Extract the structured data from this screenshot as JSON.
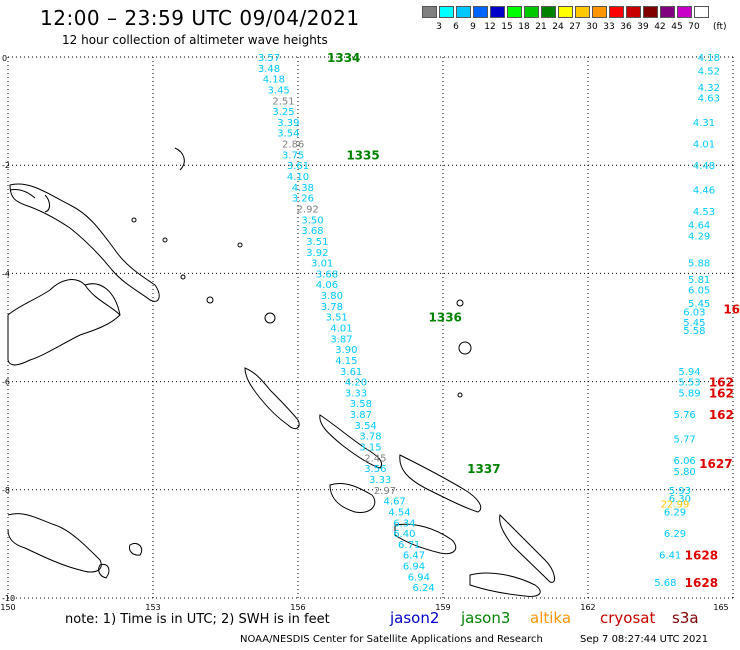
{
  "header": {
    "title": "12:00 – 23:59 UTC 09/04/2021",
    "subtitle": "12 hour collection of altimeter wave heights"
  },
  "legend": {
    "unit": "(ft)",
    "bins": [
      {
        "label": "",
        "color": "#808080"
      },
      {
        "label": "3",
        "color": "#00ffff"
      },
      {
        "label": "6",
        "color": "#00c8ff"
      },
      {
        "label": "9",
        "color": "#0064ff"
      },
      {
        "label": "12",
        "color": "#0000c8"
      },
      {
        "label": "15",
        "color": "#00ff00"
      },
      {
        "label": "18",
        "color": "#00c800"
      },
      {
        "label": "21",
        "color": "#008200"
      },
      {
        "label": "24",
        "color": "#ffff00"
      },
      {
        "label": "27",
        "color": "#ffc800"
      },
      {
        "label": "30",
        "color": "#ff9600"
      },
      {
        "label": "33",
        "color": "#ff0000"
      },
      {
        "label": "36",
        "color": "#c80000"
      },
      {
        "label": "39",
        "color": "#800000"
      },
      {
        "label": "42",
        "color": "#800080"
      },
      {
        "label": "45",
        "color": "#c800c8"
      },
      {
        "label": "70",
        "color": "#ffffff"
      }
    ]
  },
  "map": {
    "lon_ticks": [
      "150",
      "153",
      "156",
      "159",
      "162",
      "165"
    ],
    "lat_ticks": [
      "0",
      "-2",
      "-4",
      "-6",
      "-8",
      "-10"
    ],
    "lon_range": [
      150,
      165
    ],
    "lat_range": [
      0,
      -10
    ],
    "grid": "dotted"
  },
  "passes": [
    {
      "label": "1334",
      "color": "#008200",
      "lon": 156.6,
      "lat": 0.0
    },
    {
      "label": "1335",
      "color": "#008200",
      "lon": 157.0,
      "lat": -1.8
    },
    {
      "label": "1336",
      "color": "#008200",
      "lon": 158.7,
      "lat": -4.8
    },
    {
      "label": "1337",
      "color": "#008200",
      "lon": 159.5,
      "lat": -7.6
    }
  ],
  "track_jason3": [
    {
      "v": "3.57",
      "lon": 155.4,
      "lat": 0.0,
      "c": "#00c8ff"
    },
    {
      "v": "3.48",
      "lon": 155.4,
      "lat": -0.2,
      "c": "#00c8ff"
    },
    {
      "v": "4.18",
      "lon": 155.5,
      "lat": -0.4,
      "c": "#00c8ff"
    },
    {
      "v": "3.45",
      "lon": 155.6,
      "lat": -0.6,
      "c": "#00c8ff"
    },
    {
      "v": "2.51",
      "lon": 155.7,
      "lat": -0.8,
      "c": "#808080"
    },
    {
      "v": "3.25",
      "lon": 155.7,
      "lat": -1.0,
      "c": "#00c8ff"
    },
    {
      "v": "3.39",
      "lon": 155.8,
      "lat": -1.2,
      "c": "#00c8ff"
    },
    {
      "v": "3.54",
      "lon": 155.8,
      "lat": -1.4,
      "c": "#00c8ff"
    },
    {
      "v": "2.86",
      "lon": 155.9,
      "lat": -1.6,
      "c": "#808080"
    },
    {
      "v": "3.75",
      "lon": 155.9,
      "lat": -1.8,
      "c": "#00c8ff"
    },
    {
      "v": "3.61",
      "lon": 156.0,
      "lat": -2.0,
      "c": "#00c8ff"
    },
    {
      "v": "4.10",
      "lon": 156.0,
      "lat": -2.2,
      "c": "#00c8ff"
    },
    {
      "v": "4.38",
      "lon": 156.1,
      "lat": -2.4,
      "c": "#00c8ff"
    },
    {
      "v": "3.26",
      "lon": 156.1,
      "lat": -2.6,
      "c": "#00c8ff"
    },
    {
      "v": "2.92",
      "lon": 156.2,
      "lat": -2.8,
      "c": "#808080"
    },
    {
      "v": "3.50",
      "lon": 156.3,
      "lat": -3.0,
      "c": "#00c8ff"
    },
    {
      "v": "3.68",
      "lon": 156.3,
      "lat": -3.2,
      "c": "#00c8ff"
    },
    {
      "v": "3.51",
      "lon": 156.4,
      "lat": -3.4,
      "c": "#00c8ff"
    },
    {
      "v": "3.92",
      "lon": 156.4,
      "lat": -3.6,
      "c": "#00c8ff"
    },
    {
      "v": "3.01",
      "lon": 156.5,
      "lat": -3.8,
      "c": "#00c8ff"
    },
    {
      "v": "3.68",
      "lon": 156.6,
      "lat": -4.0,
      "c": "#00c8ff"
    },
    {
      "v": "4.06",
      "lon": 156.6,
      "lat": -4.2,
      "c": "#00c8ff"
    },
    {
      "v": "3.80",
      "lon": 156.7,
      "lat": -4.4,
      "c": "#00c8ff"
    },
    {
      "v": "3.78",
      "lon": 156.7,
      "lat": -4.6,
      "c": "#00c8ff"
    },
    {
      "v": "3.51",
      "lon": 156.8,
      "lat": -4.8,
      "c": "#00c8ff"
    },
    {
      "v": "4.01",
      "lon": 156.9,
      "lat": -5.0,
      "c": "#00c8ff"
    },
    {
      "v": "3.87",
      "lon": 156.9,
      "lat": -5.2,
      "c": "#00c8ff"
    },
    {
      "v": "3.90",
      "lon": 157.0,
      "lat": -5.4,
      "c": "#00c8ff"
    },
    {
      "v": "4.15",
      "lon": 157.0,
      "lat": -5.6,
      "c": "#00c8ff"
    },
    {
      "v": "3.61",
      "lon": 157.1,
      "lat": -5.8,
      "c": "#00c8ff"
    },
    {
      "v": "4.20",
      "lon": 157.2,
      "lat": -6.0,
      "c": "#00c8ff"
    },
    {
      "v": "3.33",
      "lon": 157.2,
      "lat": -6.2,
      "c": "#00c8ff"
    },
    {
      "v": "3.58",
      "lon": 157.3,
      "lat": -6.4,
      "c": "#00c8ff"
    },
    {
      "v": "3.87",
      "lon": 157.3,
      "lat": -6.6,
      "c": "#00c8ff"
    },
    {
      "v": "3.54",
      "lon": 157.4,
      "lat": -6.8,
      "c": "#00c8ff"
    },
    {
      "v": "3.78",
      "lon": 157.5,
      "lat": -7.0,
      "c": "#00c8ff"
    },
    {
      "v": "3.15",
      "lon": 157.5,
      "lat": -7.2,
      "c": "#00c8ff"
    },
    {
      "v": "2.45",
      "lon": 157.6,
      "lat": -7.4,
      "c": "#808080"
    },
    {
      "v": "3.56",
      "lon": 157.6,
      "lat": -7.6,
      "c": "#00c8ff"
    },
    {
      "v": "3.33",
      "lon": 157.7,
      "lat": -7.8,
      "c": "#00c8ff"
    },
    {
      "v": "2.97",
      "lon": 157.8,
      "lat": -8.0,
      "c": "#808080"
    },
    {
      "v": "4.67",
      "lon": 158.0,
      "lat": -8.2,
      "c": "#00c8ff"
    },
    {
      "v": "4.54",
      "lon": 158.1,
      "lat": -8.4,
      "c": "#00c8ff"
    },
    {
      "v": "6.34",
      "lon": 158.2,
      "lat": -8.6,
      "c": "#00c8ff"
    },
    {
      "v": "6.40",
      "lon": 158.2,
      "lat": -8.8,
      "c": "#00c8ff"
    },
    {
      "v": "6.71",
      "lon": 158.3,
      "lat": -9.0,
      "c": "#00c8ff"
    },
    {
      "v": "6.47",
      "lon": 158.4,
      "lat": -9.2,
      "c": "#00c8ff"
    },
    {
      "v": "6.94",
      "lon": 158.4,
      "lat": -9.4,
      "c": "#00c8ff"
    },
    {
      "v": "6.94",
      "lon": 158.5,
      "lat": -9.6,
      "c": "#00c8ff"
    },
    {
      "v": "6.24",
      "lon": 158.6,
      "lat": -9.8,
      "c": "#00c8ff"
    }
  ],
  "track_right": [
    {
      "v": "4.18",
      "lon": 164.5,
      "lat": 0.0,
      "c": "#00c8ff"
    },
    {
      "v": "4.52",
      "lon": 164.5,
      "lat": -0.25,
      "c": "#00c8ff"
    },
    {
      "v": "4.32",
      "lon": 164.5,
      "lat": -0.55,
      "c": "#00c8ff"
    },
    {
      "v": "4.63",
      "lon": 164.5,
      "lat": -0.75,
      "c": "#00c8ff"
    },
    {
      "v": "4.31",
      "lon": 164.4,
      "lat": -1.2,
      "c": "#00c8ff"
    },
    {
      "v": "4.01",
      "lon": 164.4,
      "lat": -1.6,
      "c": "#00c8ff"
    },
    {
      "v": "4.48",
      "lon": 164.4,
      "lat": -2.0,
      "c": "#00c8ff"
    },
    {
      "v": "4.46",
      "lon": 164.4,
      "lat": -2.45,
      "c": "#00c8ff"
    },
    {
      "v": "4.53",
      "lon": 164.4,
      "lat": -2.85,
      "c": "#00c8ff"
    },
    {
      "v": "4.64",
      "lon": 164.3,
      "lat": -3.1,
      "c": "#00c8ff"
    },
    {
      "v": "4.29",
      "lon": 164.3,
      "lat": -3.3,
      "c": "#00c8ff"
    },
    {
      "v": "5.88",
      "lon": 164.3,
      "lat": -3.8,
      "c": "#00c8ff"
    },
    {
      "v": "5.81",
      "lon": 164.3,
      "lat": -4.1,
      "c": "#00c8ff"
    },
    {
      "v": "6.05",
      "lon": 164.3,
      "lat": -4.3,
      "c": "#00c8ff"
    },
    {
      "v": "5.45",
      "lon": 164.3,
      "lat": -4.55,
      "c": "#00c8ff"
    },
    {
      "v": "6.03",
      "lon": 164.2,
      "lat": -4.7,
      "c": "#00c8ff"
    },
    {
      "v": "5.45",
      "lon": 164.2,
      "lat": -4.9,
      "c": "#00c8ff"
    },
    {
      "v": "5.58",
      "lon": 164.2,
      "lat": -5.05,
      "c": "#00c8ff"
    },
    {
      "v": "5.94",
      "lon": 164.1,
      "lat": -5.8,
      "c": "#00c8ff"
    },
    {
      "v": "5.53",
      "lon": 164.1,
      "lat": -6.0,
      "c": "#00c8ff"
    },
    {
      "v": "5.89",
      "lon": 164.1,
      "lat": -6.2,
      "c": "#00c8ff"
    },
    {
      "v": "5.76",
      "lon": 164.0,
      "lat": -6.6,
      "c": "#00c8ff"
    },
    {
      "v": "5.77",
      "lon": 164.0,
      "lat": -7.05,
      "c": "#00c8ff"
    },
    {
      "v": "6.06",
      "lon": 164.0,
      "lat": -7.45,
      "c": "#00c8ff"
    },
    {
      "v": "5.80",
      "lon": 164.0,
      "lat": -7.65,
      "c": "#00c8ff"
    },
    {
      "v": "5.93",
      "lon": 163.9,
      "lat": -8.0,
      "c": "#00c8ff"
    },
    {
      "v": "6.30",
      "lon": 163.9,
      "lat": -8.15,
      "c": "#00c8ff"
    },
    {
      "v": "22.99",
      "lon": 163.8,
      "lat": -8.25,
      "c": "#ffc800"
    },
    {
      "v": "6.29",
      "lon": 163.8,
      "lat": -8.4,
      "c": "#00c8ff"
    },
    {
      "v": "6.29",
      "lon": 163.8,
      "lat": -8.8,
      "c": "#00c8ff"
    },
    {
      "v": "6.41",
      "lon": 163.7,
      "lat": -9.2,
      "c": "#00c8ff"
    },
    {
      "v": "5.68",
      "lon": 163.6,
      "lat": -9.7,
      "c": "#00c8ff"
    }
  ],
  "red_passes": [
    {
      "label": "16",
      "lon": 164.8,
      "lat": -4.65
    },
    {
      "label": "162",
      "lon": 164.5,
      "lat": -6.0
    },
    {
      "label": "162",
      "lon": 164.5,
      "lat": -6.2
    },
    {
      "label": "162",
      "lon": 164.5,
      "lat": -6.6
    },
    {
      "label": "1627",
      "lon": 164.3,
      "lat": -7.5
    },
    {
      "label": "1628",
      "lon": 164.0,
      "lat": -9.2
    },
    {
      "label": "1628",
      "lon": 164.0,
      "lat": -9.7
    }
  ],
  "footer": {
    "note": "note:  1) Time is in UTC;  2) SWH is in feet",
    "missions": [
      {
        "name": "jason2",
        "color": "#0000c8"
      },
      {
        "name": "jason3",
        "color": "#008200"
      },
      {
        "name": "altika",
        "color": "#ff9600"
      },
      {
        "name": "cryosat",
        "color": "#c80000"
      },
      {
        "name": "s3a",
        "color": "#800000"
      }
    ],
    "credit": "NOAA/NESDIS Center for Satellite Applications and Research",
    "generated": "Sep  7 08:27:44 UTC 2021"
  }
}
